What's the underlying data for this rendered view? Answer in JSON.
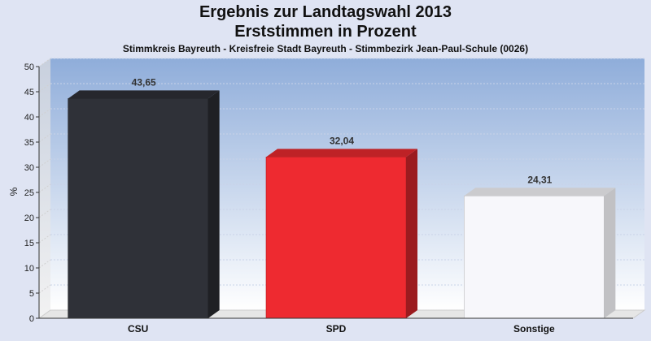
{
  "header": {
    "title": "Ergebnis zur Landtagswahl 2013",
    "subtitle": "Erststimmen in Prozent",
    "caption": "Stimmkreis Bayreuth - Kreisfreie Stadt Bayreuth - Stimmbezirk Jean-Paul-Schule (0026)"
  },
  "chart_data": {
    "type": "bar",
    "title": "Ergebnis zur Landtagswahl 2013",
    "subtitle": "Erststimmen in Prozent",
    "xlabel": "",
    "ylabel": "%",
    "ylim": [
      0,
      50
    ],
    "yticks": [
      0,
      5,
      10,
      15,
      20,
      25,
      30,
      35,
      40,
      45,
      50
    ],
    "grid": true,
    "categories": [
      "CSU",
      "SPD",
      "Sonstige"
    ],
    "values": [
      43.65,
      32.04,
      24.31
    ],
    "value_labels": [
      "43,65",
      "32,04",
      "24,31"
    ],
    "colors": [
      "#2f3138",
      "#ee2a30",
      "#f7f7fb"
    ],
    "background_color": "#dfe4f3"
  }
}
